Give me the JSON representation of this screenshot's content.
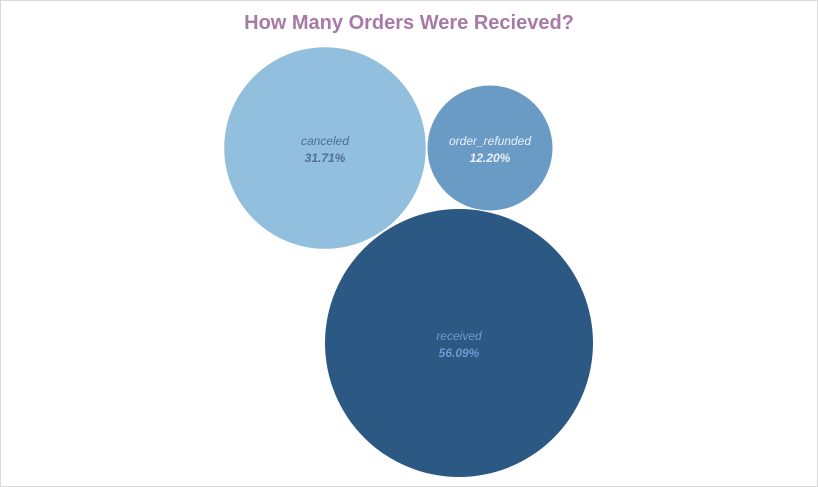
{
  "chart_data": {
    "type": "bubble",
    "title": "How Many Orders Were Recieved?",
    "series": [
      {
        "name": "canceled",
        "percent_label": "31.71%",
        "value": 31.71,
        "color": "#93bfde",
        "label_color": "#4e6f8d"
      },
      {
        "name": "order_refunded",
        "percent_label": "12.20%",
        "value": 12.2,
        "color": "#6a9bc4",
        "label_color": "#e8f1fa"
      },
      {
        "name": "received",
        "percent_label": "56.09%",
        "value": 56.09,
        "color": "#2c5884",
        "label_color": "#6f9ad0"
      }
    ]
  },
  "colors": {
    "title": "#a87aa6",
    "border": "#d9d9d9"
  }
}
